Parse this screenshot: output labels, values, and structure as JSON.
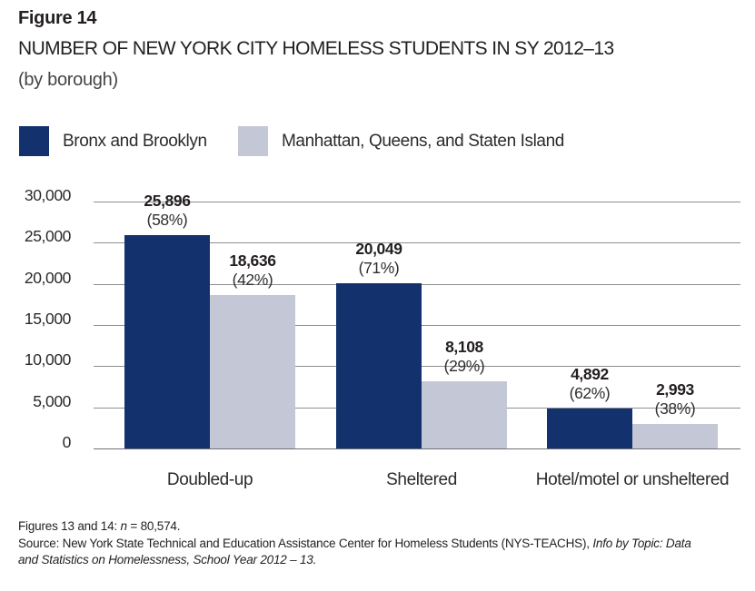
{
  "header": {
    "figure_label": "Figure 14",
    "title": "NUMBER OF NEW YORK CITY HOMELESS STUDENTS IN SY 2012–13",
    "subtitle": "(by borough)"
  },
  "colors": {
    "navy": "#12316d",
    "light_gray": "#c4c7d6",
    "text": "#231f20",
    "gridline": "#8d8f92"
  },
  "legend": {
    "items": [
      {
        "label": "Bronx and Brooklyn",
        "color": "#12316d"
      },
      {
        "label": "Manhattan, Queens, and Staten Island",
        "color": "#c4c7d6"
      }
    ]
  },
  "chart_data": {
    "type": "bar",
    "title": "Number of New York City homeless students in SY 2012–13 (by borough)",
    "categories": [
      "Doubled-up",
      "Sheltered",
      "Hotel/motel or unsheltered"
    ],
    "series": [
      {
        "name": "Bronx and Brooklyn",
        "color": "#12316d",
        "values": [
          25896,
          20049,
          4892
        ],
        "value_labels": [
          "25,896",
          "20,049",
          "4,892"
        ],
        "percent_labels": [
          "(58%)",
          "(71%)",
          "(62%)"
        ]
      },
      {
        "name": "Manhattan, Queens, and Staten Island",
        "color": "#c4c7d6",
        "values": [
          18636,
          8108,
          2993
        ],
        "value_labels": [
          "18,636",
          "8,108",
          "2,993"
        ],
        "percent_labels": [
          "(42%)",
          "(29%)",
          "(38%)"
        ]
      }
    ],
    "xlabel": "",
    "ylabel": "",
    "ylim": [
      0,
      30000
    ],
    "ytick_interval": 5000,
    "ytick_labels": [
      "0",
      "5,000",
      "10,000",
      "15,000",
      "20,000",
      "25,000",
      "30,000"
    ],
    "grid": true,
    "legend_position": "top"
  },
  "footer": {
    "note_prefix": "Figures 13 and 14: ",
    "note_italic": "n",
    "note_suffix": " = 80,574.",
    "source_prefix": "Source: New York State Technical and Education Assistance Center for Homeless Students (NYS-TEACHS), ",
    "source_italic": "Info by Topic: Data and Statistics on Homelessness, School Year 2012 – 13."
  }
}
